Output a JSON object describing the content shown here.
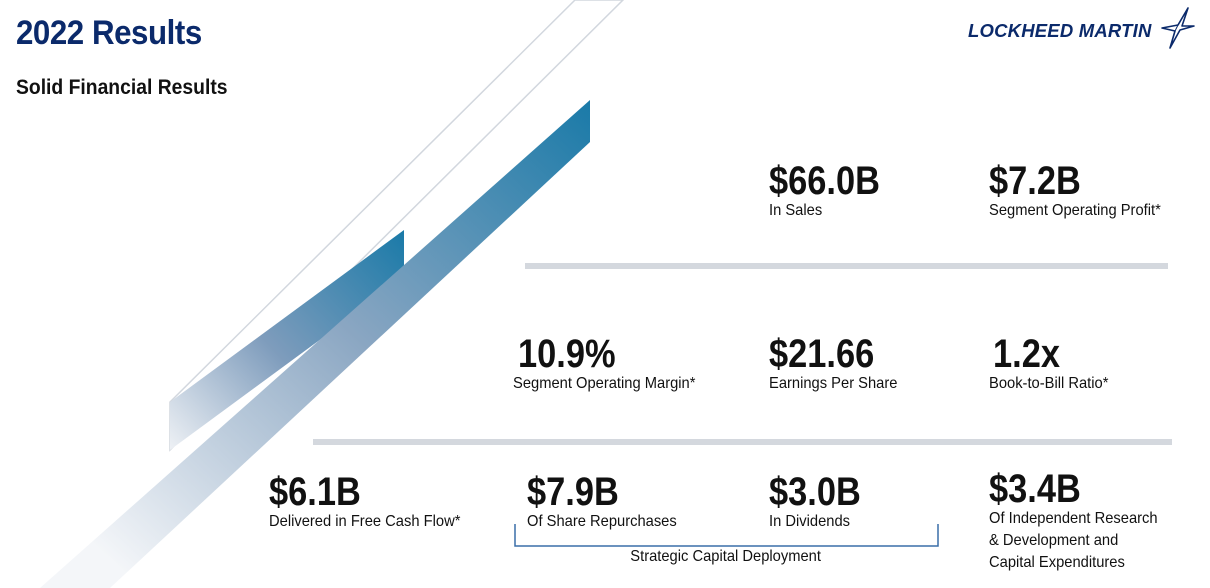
{
  "header": {
    "title": "2022 Results",
    "subtitle": "Solid Financial Results",
    "logo_text": "LOCKHEED MARTIN"
  },
  "stats": {
    "sales": {
      "value": "$66.0B",
      "label": "In Sales"
    },
    "segment_operating_profit": {
      "value": "$7.2B",
      "label": "Segment Operating Profit*"
    },
    "segment_operating_margin": {
      "value": "10.9%",
      "label": "Segment Operating Margin*"
    },
    "eps": {
      "value": "$21.66",
      "label": "Earnings Per Share"
    },
    "book_to_bill": {
      "value": "1.2x",
      "label": "Book-to-Bill Ratio*"
    },
    "free_cash_flow": {
      "value": "$6.1B",
      "label": "Delivered in Free Cash Flow*"
    },
    "share_repurchases": {
      "value": "$7.9B",
      "label": "Of Share Repurchases"
    },
    "dividends": {
      "value": "$3.0B",
      "label": "In Dividends"
    },
    "research_development": {
      "value": "$3.4B",
      "label_lines": [
        "Of Independent Research",
        "& Development and",
        "Capital Expenditures"
      ]
    }
  },
  "capital_deployment_caption": "Strategic Capital Deployment",
  "colors": {
    "title_navy": "#0b2a6b",
    "accent_blue": "#1a7aa8",
    "divider_gray": "#d4d8de"
  }
}
